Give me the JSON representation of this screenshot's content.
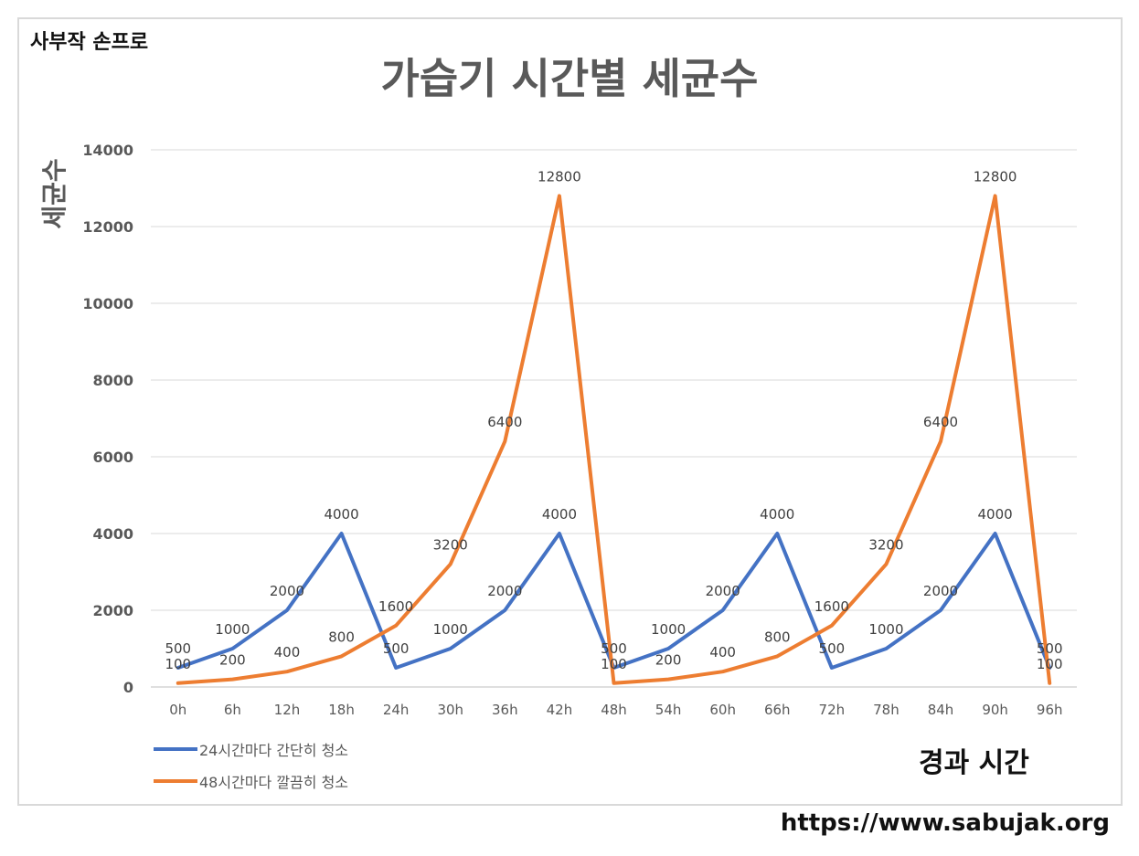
{
  "brand": "사부작 손프로",
  "url": "https://www.sabujak.org",
  "chart_data": {
    "type": "line",
    "title": "가습기 시간별 세균수",
    "xlabel": "경과 시간",
    "ylabel": "세균수",
    "categories": [
      "0h",
      "6h",
      "12h",
      "18h",
      "24h",
      "30h",
      "36h",
      "42h",
      "48h",
      "54h",
      "60h",
      "66h",
      "72h",
      "78h",
      "84h",
      "90h",
      "96h"
    ],
    "ylim": [
      0,
      14000
    ],
    "yticks": [
      0,
      2000,
      4000,
      6000,
      8000,
      10000,
      12000,
      14000
    ],
    "grid": true,
    "legend_position": "bottom-left",
    "series": [
      {
        "name": "24시간마다 간단히 청소",
        "color": "#4472C4",
        "values": [
          500,
          1000,
          2000,
          4000,
          500,
          1000,
          2000,
          4000,
          500,
          1000,
          2000,
          4000,
          500,
          1000,
          2000,
          4000,
          500
        ]
      },
      {
        "name": "48시간마다 깔끔히 청소",
        "color": "#ED7D31",
        "values": [
          100,
          200,
          400,
          800,
          1600,
          3200,
          6400,
          12800,
          100,
          200,
          400,
          800,
          1600,
          3200,
          6400,
          12800,
          100
        ]
      }
    ]
  }
}
